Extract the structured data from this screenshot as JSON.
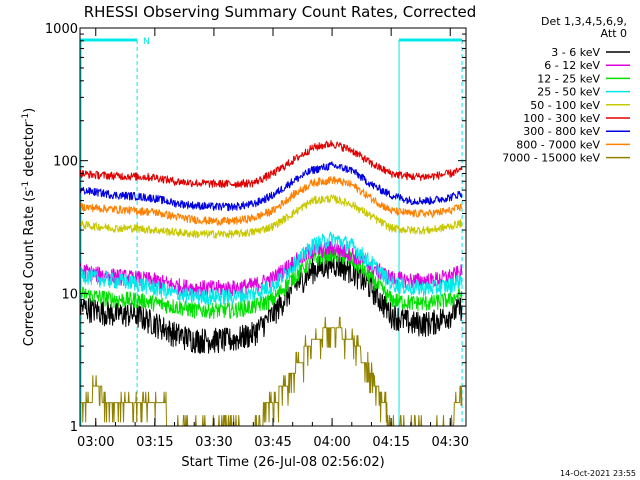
{
  "chart_data": {
    "type": "line",
    "title": "RHESSI Observing Summary Count Rates, Corrected",
    "xlabel": "Start Time (26-Jul-08 02:56:02)",
    "ylabel_main": "Corrected Count Rate (s",
    "ylabel_sup1": "-1",
    "ylabel_mid": " detector",
    "ylabel_sup2": "-1",
    "ylabel_end": ")",
    "y_scale": "log",
    "ylim": [
      1,
      1000
    ],
    "xlim_minutes": [
      176,
      274
    ],
    "x_ticks": [
      {
        "label": "03:00",
        "minute": 180
      },
      {
        "label": "03:15",
        "minute": 195
      },
      {
        "label": "03:30",
        "minute": 210
      },
      {
        "label": "03:45",
        "minute": 225
      },
      {
        "label": "04:00",
        "minute": 240
      },
      {
        "label": "04:15",
        "minute": 255
      },
      {
        "label": "04:30",
        "minute": 270
      }
    ],
    "y_ticks": [
      {
        "label": "1",
        "value": 1
      },
      {
        "label": "10",
        "value": 10
      },
      {
        "label": "100",
        "value": 100
      },
      {
        "label": "1000",
        "value": 1000
      }
    ],
    "legend_header_1": "Det 1,3,4,5,6,9,",
    "legend_header_2": "Att 0",
    "legend_position": "right",
    "night_markers": [
      {
        "label": "N",
        "start_minute": 176,
        "end_minute": 190.5,
        "label_minute": 192
      },
      {
        "label": "",
        "start_minute": 257,
        "end_minute": 273,
        "label_minute": null
      }
    ],
    "series": [
      {
        "name": "3 - 6 keV",
        "color": "#000000",
        "x": [
          176,
          180,
          185,
          190,
          195,
          200,
          205,
          210,
          215,
          220,
          225,
          230,
          235,
          240,
          245,
          250,
          255,
          260,
          265,
          270,
          273
        ],
        "y": [
          8,
          7.5,
          7,
          7,
          6,
          5,
          4.5,
          4.5,
          4.5,
          5,
          7,
          11,
          15,
          17,
          15,
          11,
          7,
          6,
          6,
          7,
          8
        ]
      },
      {
        "name": "6 - 12 keV",
        "color": "#e000e0",
        "x": [
          176,
          180,
          185,
          190,
          195,
          200,
          205,
          210,
          215,
          220,
          225,
          230,
          235,
          240,
          245,
          250,
          255,
          260,
          265,
          270,
          273
        ],
        "y": [
          15,
          14,
          13.5,
          13,
          12.5,
          11.5,
          11,
          11,
          11,
          11.5,
          13,
          17,
          21,
          22,
          20,
          16,
          13,
          12.5,
          12.5,
          13.5,
          14.5
        ]
      },
      {
        "name": "12 - 25 keV",
        "color": "#00e000",
        "x": [
          176,
          180,
          185,
          190,
          195,
          200,
          205,
          210,
          215,
          220,
          225,
          230,
          235,
          240,
          245,
          250,
          255,
          260,
          265,
          270,
          273
        ],
        "y": [
          10,
          9.5,
          9,
          9,
          8.5,
          8,
          7.5,
          7.5,
          7.5,
          8,
          9,
          13,
          18,
          20,
          18,
          13,
          9,
          8.5,
          8.5,
          9,
          10
        ]
      },
      {
        "name": "25 - 50 keV",
        "color": "#00e8e8",
        "x": [
          176,
          180,
          185,
          190,
          195,
          200,
          205,
          210,
          215,
          220,
          225,
          230,
          235,
          240,
          245,
          250,
          255,
          260,
          265,
          270,
          273
        ],
        "y": [
          14,
          13,
          12.5,
          12,
          11,
          10,
          9.5,
          9.5,
          9.5,
          10,
          11.5,
          16,
          23,
          26,
          23,
          17,
          12,
          11,
          11,
          11.5,
          13
        ]
      },
      {
        "name": "50 - 100 keV",
        "color": "#c8c800",
        "x": [
          176,
          180,
          185,
          190,
          195,
          200,
          205,
          210,
          215,
          220,
          225,
          230,
          235,
          240,
          245,
          250,
          255,
          260,
          265,
          270,
          273
        ],
        "y": [
          33,
          32,
          31,
          31,
          30,
          29,
          28,
          28,
          28,
          29,
          32,
          40,
          50,
          52,
          47,
          38,
          31,
          30,
          30,
          32,
          34
        ]
      },
      {
        "name": "100 - 300 keV",
        "color": "#e00000",
        "x": [
          176,
          180,
          185,
          190,
          195,
          200,
          205,
          210,
          215,
          220,
          225,
          230,
          235,
          240,
          245,
          250,
          255,
          260,
          265,
          270,
          273
        ],
        "y": [
          80,
          78,
          77,
          76,
          75,
          70,
          68,
          67,
          67,
          68,
          80,
          100,
          125,
          135,
          120,
          95,
          80,
          76,
          76,
          80,
          85
        ]
      },
      {
        "name": "300 - 800 keV",
        "color": "#0000e0",
        "x": [
          176,
          180,
          185,
          190,
          195,
          200,
          205,
          210,
          215,
          220,
          225,
          230,
          235,
          240,
          245,
          250,
          255,
          260,
          265,
          270,
          273
        ],
        "y": [
          60,
          58,
          55,
          54,
          52,
          48,
          46,
          45,
          45,
          47,
          55,
          70,
          85,
          92,
          85,
          66,
          55,
          50,
          50,
          53,
          57
        ]
      },
      {
        "name": "800 - 7000 keV",
        "color": "#ff8000",
        "x": [
          176,
          180,
          185,
          190,
          195,
          200,
          205,
          210,
          215,
          220,
          225,
          230,
          235,
          240,
          245,
          250,
          255,
          260,
          265,
          270,
          273
        ],
        "y": [
          45,
          44,
          43,
          42,
          41,
          38,
          36,
          35,
          35,
          37,
          42,
          55,
          68,
          72,
          66,
          52,
          42,
          40,
          40,
          42,
          45
        ]
      },
      {
        "name": "7000 - 15000 keV",
        "color": "#908000",
        "x": [
          176,
          180,
          185,
          190,
          195,
          200,
          205,
          210,
          215,
          220,
          225,
          230,
          235,
          240,
          245,
          250,
          255,
          260,
          265,
          270,
          273
        ],
        "y": [
          1.5,
          1.8,
          1.6,
          1.7,
          1.6,
          1,
          1,
          1,
          1,
          1,
          1.5,
          2.5,
          4.5,
          5.5,
          4.5,
          2.5,
          1,
          1,
          1,
          1,
          2
        ]
      }
    ]
  },
  "footer": {
    "timestamp": "14-Oct-2021 23:55"
  }
}
